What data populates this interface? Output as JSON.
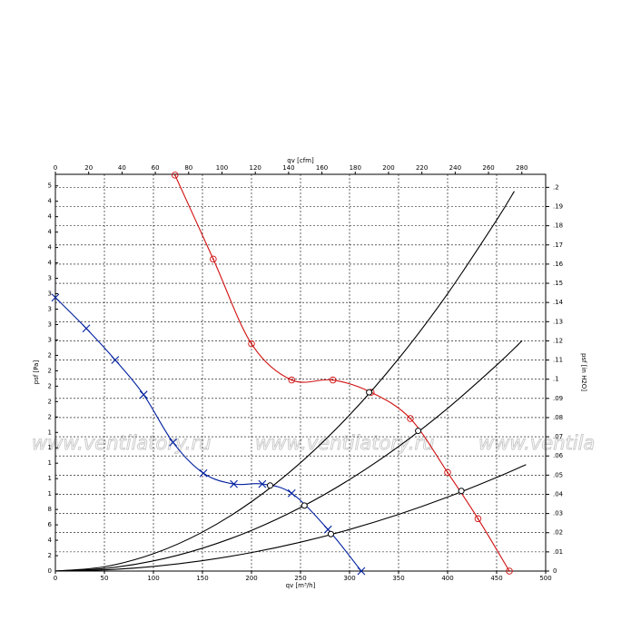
{
  "chart_data": {
    "type": "line",
    "x_label_bottom": "qv [m³/h]",
    "x_label_top": "qv [cfm]",
    "y_label_left": "psf [Pa]",
    "y_label_right": "psf [in H2O]",
    "watermark": [
      "www.ventilatory.ru",
      "www.ventilatory.ru",
      "www.ventilatory.ru"
    ],
    "xlim": [
      0,
      500
    ],
    "xticks": [
      0,
      50,
      100,
      150,
      200,
      250,
      300,
      350,
      400,
      450,
      500
    ],
    "x2lim": [
      0,
      294.3
    ],
    "x2ticks": [
      0,
      20,
      40,
      60,
      80,
      100,
      120,
      140,
      160,
      180,
      200,
      220,
      240,
      260,
      280
    ],
    "ylim": [
      0,
      51.5
    ],
    "yticks": [
      0,
      2,
      4,
      6,
      8,
      {
        "value": 10,
        "label": "1"
      },
      {
        "value": 12,
        "label": "1"
      },
      {
        "value": 14,
        "label": "1"
      },
      {
        "value": 16,
        "label": "1"
      },
      {
        "value": 18,
        "label": "1"
      },
      {
        "value": 20,
        "label": "2"
      },
      {
        "value": 22,
        "label": "2"
      },
      {
        "value": 24,
        "label": "2"
      },
      {
        "value": 26,
        "label": "2"
      },
      {
        "value": 28,
        "label": "2"
      },
      {
        "value": 30,
        "label": "3"
      },
      {
        "value": 32,
        "label": "3"
      },
      {
        "value": 34,
        "label": "3"
      },
      {
        "value": 36,
        "label": "3"
      },
      {
        "value": 38,
        "label": "3"
      },
      {
        "value": 40,
        "label": "4"
      },
      {
        "value": 42,
        "label": "4"
      },
      {
        "value": 44,
        "label": "4"
      },
      {
        "value": 46,
        "label": "4"
      },
      {
        "value": 48,
        "label": "4"
      },
      {
        "value": 50,
        "label": "5"
      }
    ],
    "y2lim": [
      0,
      0.2068
    ],
    "y2ticks": [
      0,
      {
        "value": 0.01,
        "label": ".01"
      },
      {
        "value": 0.02,
        "label": ".02"
      },
      {
        "value": 0.03,
        "label": ".03"
      },
      {
        "value": 0.04,
        "label": ".04"
      },
      {
        "value": 0.05,
        "label": ".05"
      },
      {
        "value": 0.06,
        "label": ".06"
      },
      {
        "value": 0.07,
        "label": ".07"
      },
      {
        "value": 0.08,
        "label": ".08"
      },
      {
        "value": 0.09,
        "label": ".09"
      },
      {
        "value": 0.1,
        "label": ".1"
      },
      {
        "value": 0.11,
        "label": ".11"
      },
      {
        "value": 0.12,
        "label": ".12"
      },
      {
        "value": 0.13,
        "label": ".13"
      },
      {
        "value": 0.14,
        "label": ".14"
      },
      {
        "value": 0.15,
        "label": ".15"
      },
      {
        "value": 0.16,
        "label": ".16"
      },
      {
        "value": 0.17,
        "label": ".17"
      },
      {
        "value": 0.18,
        "label": ".18"
      },
      {
        "value": 0.19,
        "label": ".19"
      },
      {
        "value": 0.2,
        "label": ".2"
      }
    ],
    "grid": true,
    "series": [
      {
        "color": "#00209f",
        "marker": "x",
        "x": [
          0,
          31.5,
          61,
          90,
          120,
          151,
          182,
          211,
          241,
          278,
          312
        ],
        "values": [
          35.5,
          31.5,
          27.4,
          22.9,
          16.7,
          12.7,
          11.3,
          11.3,
          10.1,
          5.4,
          0
        ]
      },
      {
        "color": "#d01010",
        "marker": "circle",
        "x": [
          122,
          161,
          200,
          241,
          283,
          322,
          362,
          400,
          431,
          463
        ],
        "values": [
          51.4,
          40.5,
          29.5,
          24.8,
          24.8,
          23.2,
          19.8,
          12.8,
          6.8,
          0
        ]
      },
      {
        "color": "#000000",
        "marker": "none",
        "x": [
          0,
          50,
          100,
          150,
          200,
          250,
          300,
          350,
          400,
          450,
          468
        ],
        "values": [
          0,
          0.56,
          2.25,
          5.06,
          9,
          14.06,
          20.25,
          27.56,
          36,
          45.56,
          49.3
        ]
      },
      {
        "color": "#000000",
        "marker": "none",
        "x": [
          0,
          50,
          100,
          150,
          200,
          250,
          300,
          350,
          400,
          450,
          476
        ],
        "values": [
          0,
          0.33,
          1.32,
          2.97,
          5.28,
          8.25,
          11.88,
          16.17,
          21.12,
          26.73,
          29.9
        ]
      },
      {
        "color": "#000000",
        "marker": "none",
        "x": [
          0,
          50,
          100,
          150,
          200,
          250,
          300,
          350,
          400,
          450,
          480
        ],
        "values": [
          0,
          0.15,
          0.6,
          1.35,
          2.4,
          3.75,
          5.4,
          7.35,
          9.6,
          12.15,
          13.82
        ]
      },
      {
        "color": "#000000",
        "marker": "open",
        "x": [
          219,
          254,
          281,
          320,
          370,
          414
        ],
        "values": [
          11.1,
          8.5,
          4.8,
          23.2,
          18.2,
          10.4
        ]
      }
    ]
  }
}
